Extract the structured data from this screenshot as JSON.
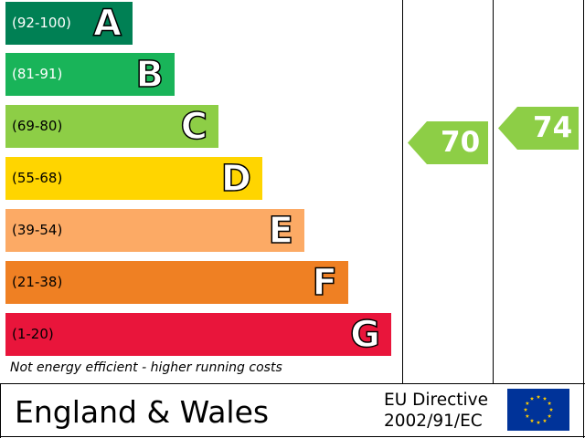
{
  "bands": [
    {
      "range": "(92-100)",
      "letter": "A",
      "color": "#008054",
      "range_color": "#ffffff"
    },
    {
      "range": "(81-91)",
      "letter": "B",
      "color": "#19b459",
      "range_color": "#ffffff"
    },
    {
      "range": "(69-80)",
      "letter": "C",
      "color": "#8dce46",
      "range_color": "#000000"
    },
    {
      "range": "(55-68)",
      "letter": "D",
      "color": "#ffd500",
      "range_color": "#000000"
    },
    {
      "range": "(39-54)",
      "letter": "E",
      "color": "#fcaa65",
      "range_color": "#000000"
    },
    {
      "range": "(21-38)",
      "letter": "F",
      "color": "#ef8023",
      "range_color": "#000000"
    },
    {
      "range": "(1-20)",
      "letter": "G",
      "color": "#e9153b",
      "range_color": "#000000"
    }
  ],
  "current": {
    "value": "70",
    "color": "#8dce46"
  },
  "potential": {
    "value": "74",
    "color": "#8dce46"
  },
  "footer_note": "Not energy efficient - higher running costs",
  "region": "England & Wales",
  "directive": {
    "line1": "EU Directive",
    "line2": "2002/91/EC"
  },
  "eu_flag": {
    "background": "#003399",
    "star_color": "#ffcc00",
    "icon": "eu-flag-icon"
  }
}
